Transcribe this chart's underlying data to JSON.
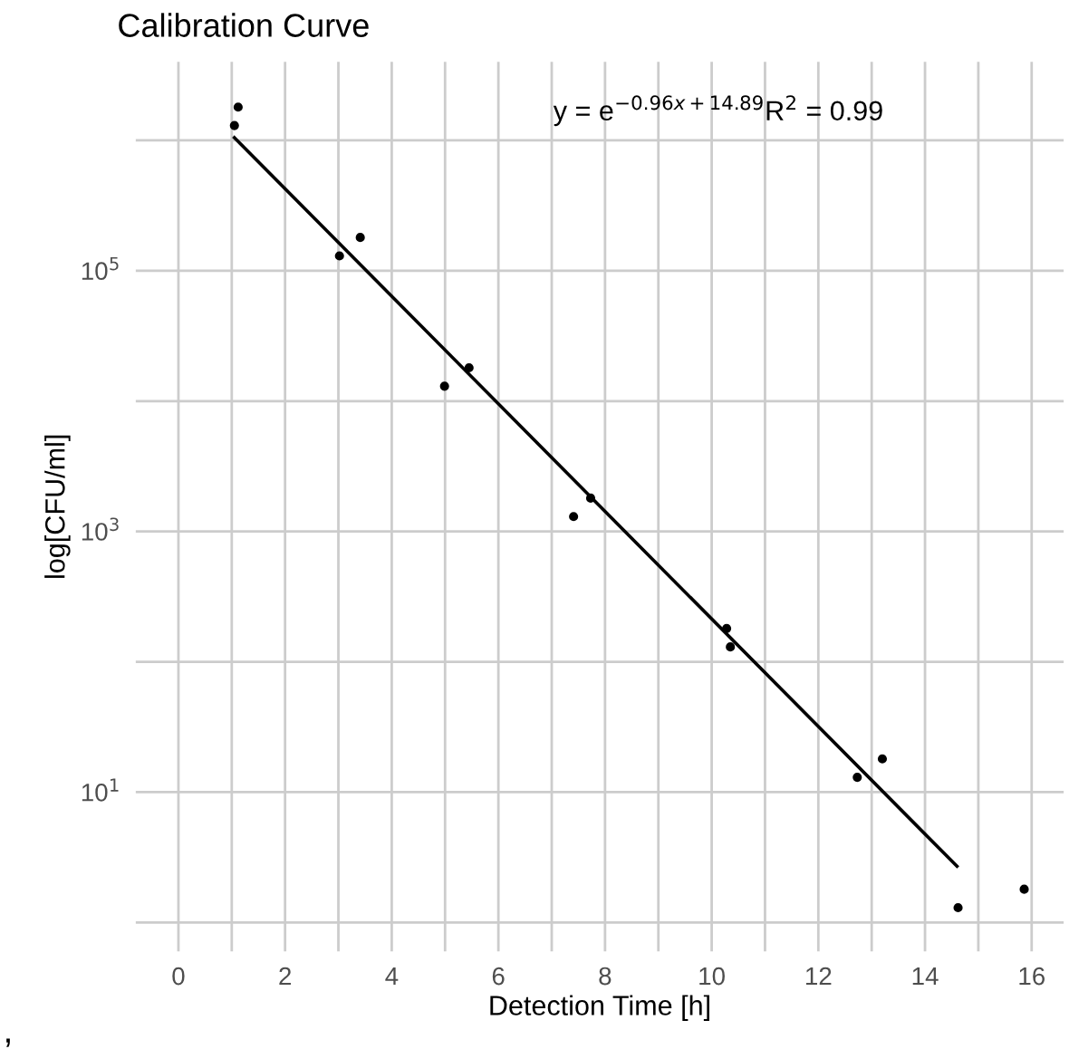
{
  "chart_data": {
    "type": "scatter",
    "title": "Calibration Curve",
    "xlabel": "Detection Time [h]",
    "ylabel": "log[CFU/ml]",
    "series": [
      {
        "type": "scatter",
        "marker": "circle",
        "color": "#000000",
        "x": [
          1.05,
          1.12,
          3.02,
          3.41,
          4.99,
          5.45,
          7.41,
          7.73,
          10.28,
          10.35,
          12.73,
          13.2,
          14.62,
          15.86
        ],
        "values": [
          1300000,
          1800000,
          130000,
          180000,
          13000,
          18000,
          1300,
          1800,
          180,
          130,
          13,
          18,
          1.3,
          1.8
        ]
      },
      {
        "type": "line",
        "color": "#000000",
        "x": [
          1.05,
          14.6
        ],
        "values": [
          1050000,
          2.7
        ]
      }
    ],
    "log": "y",
    "grid": true,
    "xlim": [
      -0.8,
      16.6
    ],
    "ylim": [
      0.6,
      4000000
    ],
    "xticks": [
      0,
      {
        "value": 1,
        "label": null
      },
      2,
      {
        "value": 3,
        "label": null
      },
      4,
      {
        "value": 5,
        "label": null
      },
      6,
      {
        "value": 7,
        "label": null
      },
      8,
      {
        "value": 9,
        "label": null
      },
      10,
      {
        "value": 11,
        "label": null
      },
      12,
      {
        "value": 13,
        "label": null
      },
      14,
      {
        "value": 15,
        "label": null
      },
      16
    ],
    "yticks": [
      {
        "value": 1,
        "label": null
      },
      {
        "value": 10,
        "label": "10$^{1}$"
      },
      {
        "value": 100,
        "label": null
      },
      {
        "value": 1000,
        "label": "10$^{3}$"
      },
      {
        "value": 10000,
        "label": null
      },
      {
        "value": 100000,
        "label": "10$^{5}$"
      },
      {
        "value": 1000000,
        "label": null
      }
    ],
    "annotations": [
      "y = e$^{−0.96x+14.89}$R$^{2}$ = 0.99",
      ","
    ]
  }
}
